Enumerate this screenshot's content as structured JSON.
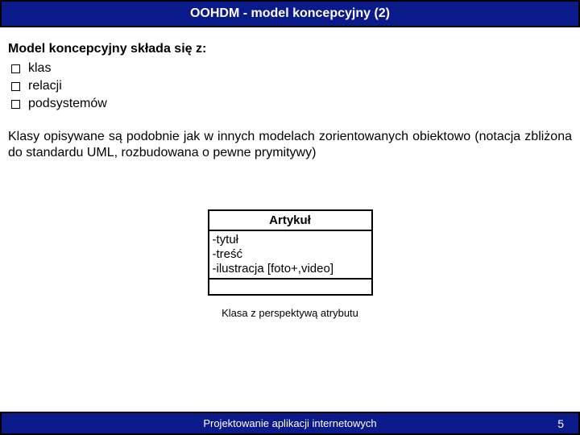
{
  "header": {
    "title": "OOHDM  - model koncepcyjny (2)"
  },
  "intro": "Model koncepcyjny składa się z:",
  "bullets": [
    "klas",
    "relacji",
    "podsystemów"
  ],
  "paragraph": "Klasy opisywane są podobnie jak w innych modelach zorientowanych obiektowo (notacja zbliżona do standardu UML, rozbudowana o pewne prymitywy)",
  "uml": {
    "class_name": "Artykuł",
    "attributes": [
      "-tytuł",
      "-treść",
      "-ilustracja [foto+,video]"
    ],
    "caption": "Klasa z perspektywą atrybutu"
  },
  "footer": {
    "text": "Projektowanie aplikacji internetowych",
    "page": "5"
  },
  "colors": {
    "header_bg": "#0a1a8a",
    "header_border": "#000000",
    "text": "#000000",
    "bg": "#ffffff"
  }
}
